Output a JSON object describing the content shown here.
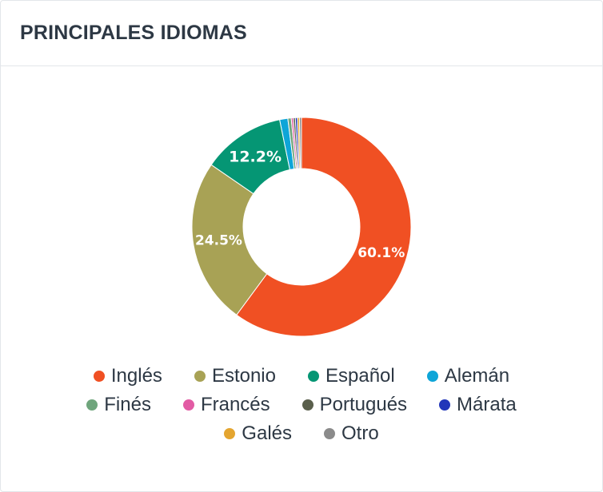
{
  "header": {
    "title": "PRINCIPALES IDIOMAS"
  },
  "chart_data": {
    "type": "pie",
    "donut": true,
    "title": "PRINCIPALES IDIOMAS",
    "legend_position": "bottom",
    "slices": [
      {
        "name": "Inglés",
        "value": 60.1,
        "color": "#f05023",
        "label": "60.1%"
      },
      {
        "name": "Estonio",
        "value": 24.5,
        "color": "#a8a255",
        "label": "24.5%"
      },
      {
        "name": "Español",
        "value": 12.2,
        "color": "#059674",
        "label": "12.2%"
      },
      {
        "name": "Alemán",
        "value": 1.2,
        "color": "#0ea5d8",
        "label": ""
      },
      {
        "name": "Finés",
        "value": 0.5,
        "color": "#6fa57c",
        "label": ""
      },
      {
        "name": "Francés",
        "value": 0.3,
        "color": "#e25ba4",
        "label": ""
      },
      {
        "name": "Portugués",
        "value": 0.3,
        "color": "#5a5f4c",
        "label": ""
      },
      {
        "name": "Márata",
        "value": 0.3,
        "color": "#2136b9",
        "label": ""
      },
      {
        "name": "Galés",
        "value": 0.3,
        "color": "#e4a530",
        "label": ""
      },
      {
        "name": "Otro",
        "value": 0.3,
        "color": "#8b8b8b",
        "label": ""
      }
    ]
  }
}
